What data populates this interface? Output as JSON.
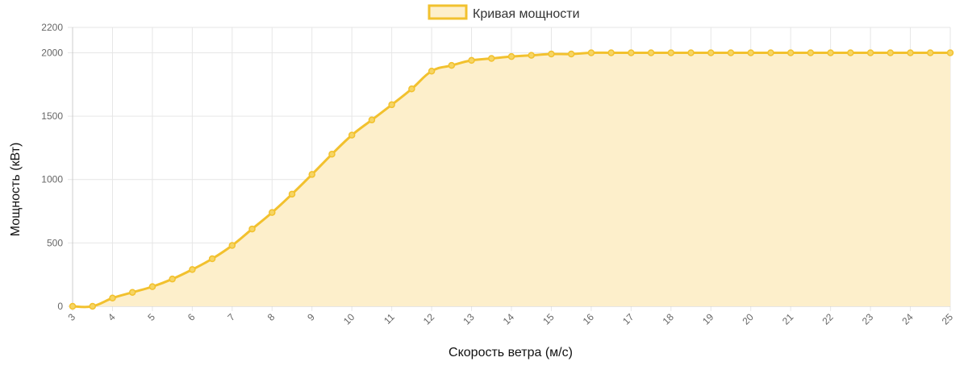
{
  "colors": {
    "line": "#F2C12E",
    "fill": "#FDEFCB",
    "point_fill": "#F6D564",
    "grid": "#e6e6e6",
    "axis": "#cccccc"
  },
  "chart_data": {
    "type": "area",
    "legend": {
      "label": "Кривая мощности",
      "placement": "top-center"
    },
    "xlabel": "Скорость ветра (м/с)",
    "ylabel": "Мощность (кВт)",
    "xlim": [
      3,
      25
    ],
    "ylim": [
      0,
      2200
    ],
    "x_ticks": [
      3,
      4,
      5,
      6,
      7,
      8,
      9,
      10,
      11,
      12,
      13,
      14,
      15,
      16,
      17,
      18,
      19,
      20,
      21,
      22,
      23,
      24,
      25
    ],
    "y_ticks": [
      0,
      500,
      1000,
      1500,
      2000,
      2200
    ],
    "grid": true,
    "series": [
      {
        "name": "Кривая мощности",
        "x": [
          3,
          3.5,
          4,
          4.5,
          5,
          5.5,
          6,
          6.5,
          7,
          7.5,
          8,
          8.5,
          9,
          9.5,
          10,
          10.5,
          11,
          11.5,
          12,
          12.5,
          13,
          13.5,
          14,
          14.5,
          15,
          15.5,
          16,
          16.5,
          17,
          17.5,
          18,
          18.5,
          19,
          19.5,
          20,
          20.5,
          21,
          21.5,
          22,
          22.5,
          23,
          23.5,
          24,
          24.5,
          25
        ],
        "y": [
          0,
          0,
          65,
          110,
          155,
          215,
          290,
          375,
          480,
          610,
          740,
          885,
          1040,
          1200,
          1350,
          1470,
          1590,
          1715,
          1855,
          1900,
          1940,
          1955,
          1970,
          1980,
          1990,
          1990,
          2000,
          2000,
          2000,
          2000,
          2000,
          2000,
          2000,
          2000,
          2000,
          2000,
          2000,
          2000,
          2000,
          2000,
          2000,
          2000,
          2000,
          2000,
          2000
        ]
      }
    ]
  }
}
